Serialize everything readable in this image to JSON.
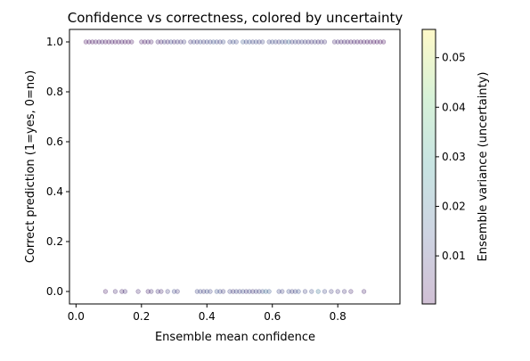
{
  "chart_data": {
    "type": "scatter",
    "title": "Confidence vs correctness, colored by uncertainty",
    "xlabel": "Ensemble mean confidence",
    "ylabel": "Correct prediction (1=yes, 0=no)",
    "xlim": [
      -0.02,
      0.99
    ],
    "ylim": [
      -0.05,
      1.05
    ],
    "xticks": [
      0.0,
      0.2,
      0.4,
      0.6,
      0.8
    ],
    "xtick_labels": [
      "0.0",
      "0.2",
      "0.4",
      "0.6",
      "0.8"
    ],
    "yticks": [
      0.0,
      0.2,
      0.4,
      0.6,
      0.8,
      1.0
    ],
    "ytick_labels": [
      "0.0",
      "0.2",
      "0.4",
      "0.6",
      "0.8",
      "1.0"
    ],
    "grid": false,
    "colormap": "viridis",
    "point_alpha": 0.25,
    "colorbar": {
      "label": "Ensemble variance (uncertainty)",
      "range": [
        0.0003,
        0.0557
      ],
      "ticks": [
        0.01,
        0.02,
        0.03,
        0.04,
        0.05
      ],
      "tick_labels": [
        "0.01",
        "0.02",
        "0.03",
        "0.04",
        "0.05"
      ]
    },
    "series": [
      {
        "y": 1,
        "points": [
          [
            0.03,
            0.002
          ],
          [
            0.04,
            0.003
          ],
          [
            0.05,
            0.002
          ],
          [
            0.06,
            0.004
          ],
          [
            0.07,
            0.003
          ],
          [
            0.08,
            0.005
          ],
          [
            0.09,
            0.003
          ],
          [
            0.1,
            0.002
          ],
          [
            0.11,
            0.004
          ],
          [
            0.12,
            0.003
          ],
          [
            0.13,
            0.002
          ],
          [
            0.14,
            0.004
          ],
          [
            0.15,
            0.003
          ],
          [
            0.16,
            0.002
          ],
          [
            0.17,
            0.003
          ],
          [
            0.2,
            0.004
          ],
          [
            0.21,
            0.003
          ],
          [
            0.22,
            0.005
          ],
          [
            0.23,
            0.004
          ],
          [
            0.25,
            0.006
          ],
          [
            0.26,
            0.005
          ],
          [
            0.27,
            0.01
          ],
          [
            0.28,
            0.006
          ],
          [
            0.29,
            0.012
          ],
          [
            0.3,
            0.007
          ],
          [
            0.31,
            0.009
          ],
          [
            0.32,
            0.008
          ],
          [
            0.33,
            0.01
          ],
          [
            0.35,
            0.008
          ],
          [
            0.36,
            0.012
          ],
          [
            0.37,
            0.009
          ],
          [
            0.38,
            0.013
          ],
          [
            0.39,
            0.01
          ],
          [
            0.4,
            0.012
          ],
          [
            0.41,
            0.011
          ],
          [
            0.42,
            0.014
          ],
          [
            0.43,
            0.012
          ],
          [
            0.44,
            0.01
          ],
          [
            0.45,
            0.013
          ],
          [
            0.47,
            0.011
          ],
          [
            0.48,
            0.014
          ],
          [
            0.49,
            0.012
          ],
          [
            0.51,
            0.015
          ],
          [
            0.52,
            0.012
          ],
          [
            0.53,
            0.014
          ],
          [
            0.54,
            0.011
          ],
          [
            0.55,
            0.013
          ],
          [
            0.56,
            0.01
          ],
          [
            0.57,
            0.012
          ],
          [
            0.59,
            0.011
          ],
          [
            0.6,
            0.013
          ],
          [
            0.61,
            0.012
          ],
          [
            0.62,
            0.01
          ],
          [
            0.63,
            0.014
          ],
          [
            0.64,
            0.011
          ],
          [
            0.65,
            0.018
          ],
          [
            0.66,
            0.01
          ],
          [
            0.67,
            0.012
          ],
          [
            0.68,
            0.009
          ],
          [
            0.69,
            0.011
          ],
          [
            0.7,
            0.01
          ],
          [
            0.71,
            0.009
          ],
          [
            0.72,
            0.008
          ],
          [
            0.73,
            0.01
          ],
          [
            0.74,
            0.007
          ],
          [
            0.75,
            0.009
          ],
          [
            0.76,
            0.008
          ],
          [
            0.79,
            0.006
          ],
          [
            0.8,
            0.007
          ],
          [
            0.81,
            0.005
          ],
          [
            0.82,
            0.006
          ],
          [
            0.83,
            0.005
          ],
          [
            0.84,
            0.004
          ],
          [
            0.85,
            0.005
          ],
          [
            0.86,
            0.004
          ],
          [
            0.87,
            0.003
          ],
          [
            0.88,
            0.004
          ],
          [
            0.89,
            0.003
          ],
          [
            0.9,
            0.003
          ],
          [
            0.91,
            0.002
          ],
          [
            0.92,
            0.003
          ],
          [
            0.93,
            0.002
          ],
          [
            0.94,
            0.002
          ]
        ]
      },
      {
        "y": 0,
        "points": [
          [
            0.09,
            0.004
          ],
          [
            0.12,
            0.006
          ],
          [
            0.14,
            0.005
          ],
          [
            0.15,
            0.007
          ],
          [
            0.19,
            0.006
          ],
          [
            0.22,
            0.005
          ],
          [
            0.23,
            0.007
          ],
          [
            0.25,
            0.008
          ],
          [
            0.26,
            0.006
          ],
          [
            0.28,
            0.01
          ],
          [
            0.3,
            0.012
          ],
          [
            0.31,
            0.009
          ],
          [
            0.37,
            0.011
          ],
          [
            0.38,
            0.012
          ],
          [
            0.39,
            0.01
          ],
          [
            0.4,
            0.013
          ],
          [
            0.41,
            0.011
          ],
          [
            0.43,
            0.014
          ],
          [
            0.44,
            0.012
          ],
          [
            0.45,
            0.01
          ],
          [
            0.47,
            0.011
          ],
          [
            0.48,
            0.009
          ],
          [
            0.49,
            0.012
          ],
          [
            0.5,
            0.01
          ],
          [
            0.51,
            0.013
          ],
          [
            0.52,
            0.009
          ],
          [
            0.53,
            0.012
          ],
          [
            0.54,
            0.008
          ],
          [
            0.55,
            0.011
          ],
          [
            0.56,
            0.01
          ],
          [
            0.57,
            0.014
          ],
          [
            0.58,
            0.018
          ],
          [
            0.59,
            0.015
          ],
          [
            0.62,
            0.012
          ],
          [
            0.63,
            0.011
          ],
          [
            0.65,
            0.013
          ],
          [
            0.66,
            0.01
          ],
          [
            0.67,
            0.012
          ],
          [
            0.68,
            0.014
          ],
          [
            0.7,
            0.011
          ],
          [
            0.72,
            0.013
          ],
          [
            0.74,
            0.02
          ],
          [
            0.76,
            0.012
          ],
          [
            0.78,
            0.01
          ],
          [
            0.8,
            0.009
          ],
          [
            0.82,
            0.008
          ],
          [
            0.84,
            0.006
          ],
          [
            0.88,
            0.005
          ]
        ]
      }
    ]
  }
}
